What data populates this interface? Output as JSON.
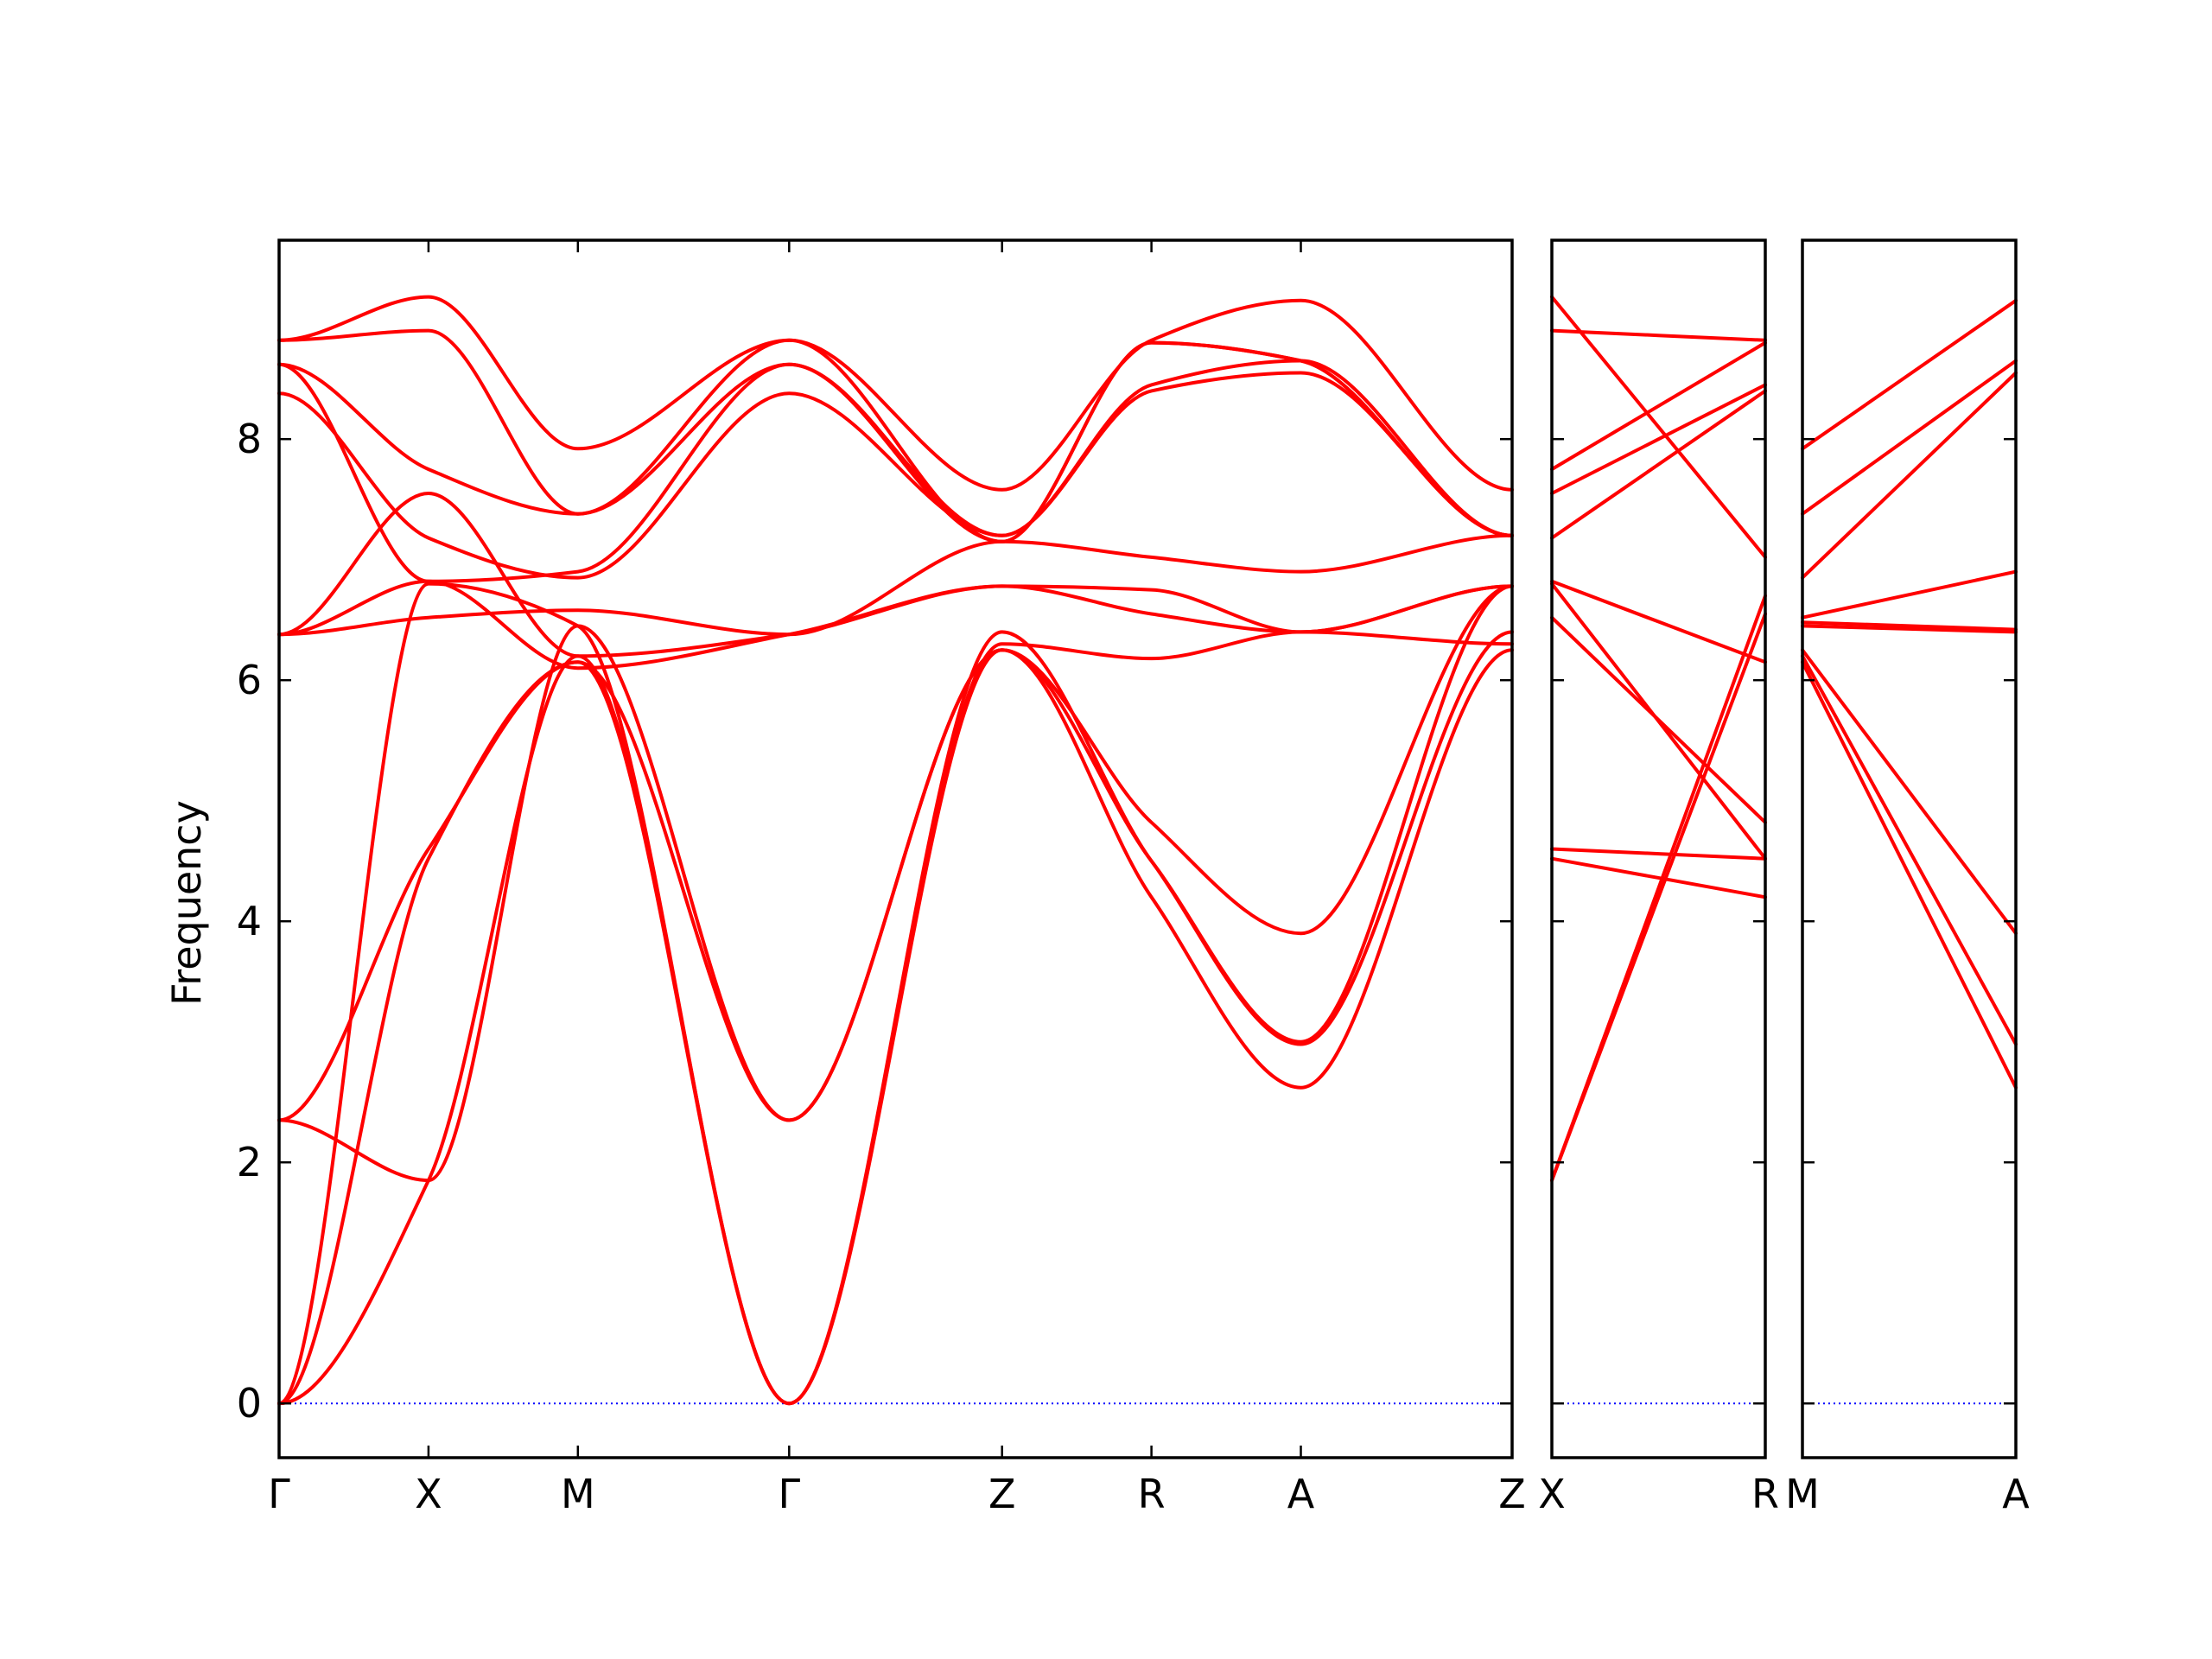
{
  "colors": {
    "band": "#ff0000",
    "zero_line": "#0000ff",
    "axes": "#000000"
  },
  "chart_data": {
    "type": "line",
    "title": "",
    "ylabel": "Frequency",
    "xlabel": "",
    "ylim": [
      -0.45,
      9.65
    ],
    "yticks": [
      0,
      2,
      4,
      6,
      8
    ],
    "ytick_labels": [
      "0",
      "2",
      "4",
      "6",
      "8"
    ],
    "grid": false,
    "legend": "none",
    "zero_line": {
      "y": 0,
      "style": "dotted",
      "color": "#0000ff"
    },
    "panels": [
      {
        "name": "panel-main",
        "path_labels": [
          "Γ",
          "X",
          "M",
          "Γ",
          "Z",
          "R",
          "A",
          "Z"
        ],
        "path_positions": [
          0,
          1,
          2,
          3.414,
          4.839,
          5.839,
          6.839,
          8.253
        ],
        "bands": [
          {
            "values": [
              0.0,
              1.85,
              6.2,
              0.0,
              6.3,
              6.18,
              6.4,
              6.3
            ]
          },
          {
            "values": [
              0.0,
              4.52,
              6.15,
              0.0,
              6.25,
              4.2,
              2.62,
              6.25
            ]
          },
          {
            "values": [
              0.0,
              6.8,
              6.45,
              0.0,
              6.4,
              4.5,
              2.98,
              6.4
            ]
          },
          {
            "values": [
              2.35,
              1.85,
              6.45,
              2.35,
              6.25,
              4.5,
              3.0,
              6.78
            ]
          },
          {
            "values": [
              2.35,
              4.6,
              6.15,
              2.35,
              6.25,
              4.82,
              3.9,
              6.78
            ]
          },
          {
            "values": [
              6.38,
              7.55,
              6.2,
              6.38,
              6.78,
              6.75,
              6.4,
              6.78
            ]
          },
          {
            "values": [
              6.38,
              6.82,
              6.1,
              6.38,
              6.78,
              6.55,
              6.4,
              6.78
            ]
          },
          {
            "values": [
              6.38,
              6.52,
              6.58,
              6.38,
              7.15,
              7.02,
              6.9,
              7.2
            ]
          },
          {
            "values": [
              8.38,
              7.18,
              6.85,
              8.38,
              7.2,
              8.4,
              8.55,
              7.2
            ]
          },
          {
            "values": [
              8.62,
              6.82,
              6.9,
              8.62,
              7.2,
              8.45,
              8.65,
              7.2
            ]
          },
          {
            "values": [
              8.62,
              7.75,
              7.38,
              8.62,
              7.15,
              8.8,
              8.65,
              7.2
            ]
          },
          {
            "values": [
              8.82,
              8.9,
              7.38,
              8.82,
              7.15,
              8.8,
              8.65,
              7.2
            ]
          },
          {
            "values": [
              8.82,
              9.18,
              7.92,
              8.82,
              7.58,
              8.82,
              9.15,
              7.58
            ]
          }
        ]
      },
      {
        "name": "panel-xr",
        "path_labels": [
          "X",
          "R"
        ],
        "path_positions": [
          0,
          1
        ],
        "bands": [
          {
            "values": [
              1.85,
              6.55
            ]
          },
          {
            "values": [
              1.85,
              6.7
            ]
          },
          {
            "values": [
              4.52,
              4.2
            ]
          },
          {
            "values": [
              4.6,
              4.52
            ]
          },
          {
            "values": [
              6.8,
              4.52
            ]
          },
          {
            "values": [
              6.52,
              4.82
            ]
          },
          {
            "values": [
              7.18,
              8.4
            ]
          },
          {
            "values": [
              6.82,
              6.15
            ]
          },
          {
            "values": [
              7.55,
              8.45
            ]
          },
          {
            "values": [
              7.75,
              8.8
            ]
          },
          {
            "values": [
              8.9,
              8.82
            ]
          },
          {
            "values": [
              9.18,
              7.02
            ]
          }
        ]
      },
      {
        "name": "panel-ma",
        "path_labels": [
          "M",
          "A"
        ],
        "path_positions": [
          0,
          1
        ],
        "bands": [
          {
            "values": [
              6.15,
              2.62
            ]
          },
          {
            "values": [
              6.2,
              2.98
            ]
          },
          {
            "values": [
              6.25,
              3.9
            ]
          },
          {
            "values": [
              6.45,
              6.4
            ]
          },
          {
            "values": [
              6.48,
              6.42
            ]
          },
          {
            "values": [
              6.52,
              6.9
            ]
          },
          {
            "values": [
              6.85,
              8.55
            ]
          },
          {
            "values": [
              7.38,
              8.65
            ]
          },
          {
            "values": [
              7.92,
              9.15
            ]
          }
        ]
      }
    ]
  }
}
